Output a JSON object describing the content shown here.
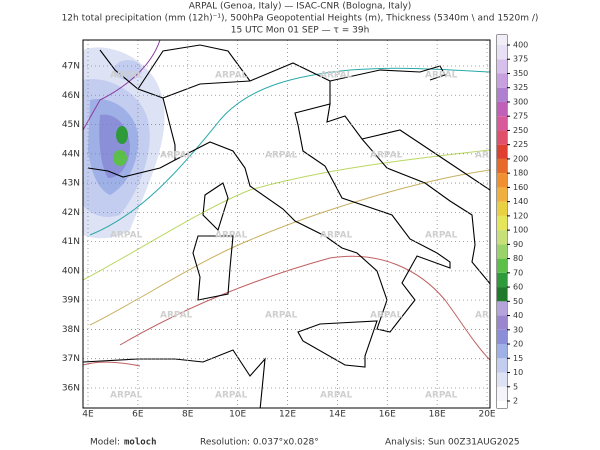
{
  "header": {
    "line1": "ARPAL (Genoa, Italy)  —  ISAC-CNR (Bologna, Italy)",
    "line2": "12h total precipitation (mm (12h)⁻¹), 500hPa Geopotential Heights (m), Thickness (5340m \\ and 1520m /)",
    "line3": "15 UTC Mon 01 SEP  —  τ = 39h"
  },
  "map": {
    "watermark": "ARPAL",
    "lon_ticks": [
      {
        "value": 4,
        "label": "4E"
      },
      {
        "value": 6,
        "label": "6E"
      },
      {
        "value": 8,
        "label": "8E"
      },
      {
        "value": 10,
        "label": "10E"
      },
      {
        "value": 12,
        "label": "12E"
      },
      {
        "value": 14,
        "label": "14E"
      },
      {
        "value": 16,
        "label": "16E"
      },
      {
        "value": 18,
        "label": "18E"
      },
      {
        "value": 20,
        "label": "20E"
      }
    ],
    "lat_ticks": [
      {
        "value": 36,
        "label": "36N"
      },
      {
        "value": 37,
        "label": "37N"
      },
      {
        "value": 38,
        "label": "38N"
      },
      {
        "value": 39,
        "label": "39N"
      },
      {
        "value": 40,
        "label": "40N"
      },
      {
        "value": 41,
        "label": "41N"
      },
      {
        "value": 42,
        "label": "42N"
      },
      {
        "value": 43,
        "label": "43N"
      },
      {
        "value": 44,
        "label": "44N"
      },
      {
        "value": 45,
        "label": "45N"
      },
      {
        "value": 46,
        "label": "46N"
      },
      {
        "value": 47,
        "label": "47N"
      }
    ]
  },
  "colorbar": {
    "levels": [
      2,
      5,
      10,
      15,
      20,
      30,
      40,
      50,
      60,
      70,
      80,
      90,
      100,
      120,
      140,
      160,
      180,
      200,
      225,
      250,
      275,
      300,
      325,
      350,
      375,
      400
    ],
    "colors": [
      "#f4f4fa",
      "#dde3f5",
      "#c3cdf0",
      "#9fb0e6",
      "#8a8fd8",
      "#9a86cf",
      "#b5a3dc",
      "#1f7a2c",
      "#2f9a3a",
      "#5cbf4a",
      "#9ad36a",
      "#c8e07a",
      "#e6e65a",
      "#e8d040",
      "#f0b040",
      "#f09030",
      "#e86a28",
      "#e04030",
      "#e0506a",
      "#d85a9a",
      "#c060b8",
      "#b080d0",
      "#c8a0e0",
      "#d8c0ec",
      "#e8e0f4"
    ]
  },
  "footer": {
    "model_label": "Model:",
    "model": "moloch",
    "resolution": "Resolution: 0.037°x0.028°",
    "analysis": "Analysis: Sun 00Z31AUG2025"
  }
}
